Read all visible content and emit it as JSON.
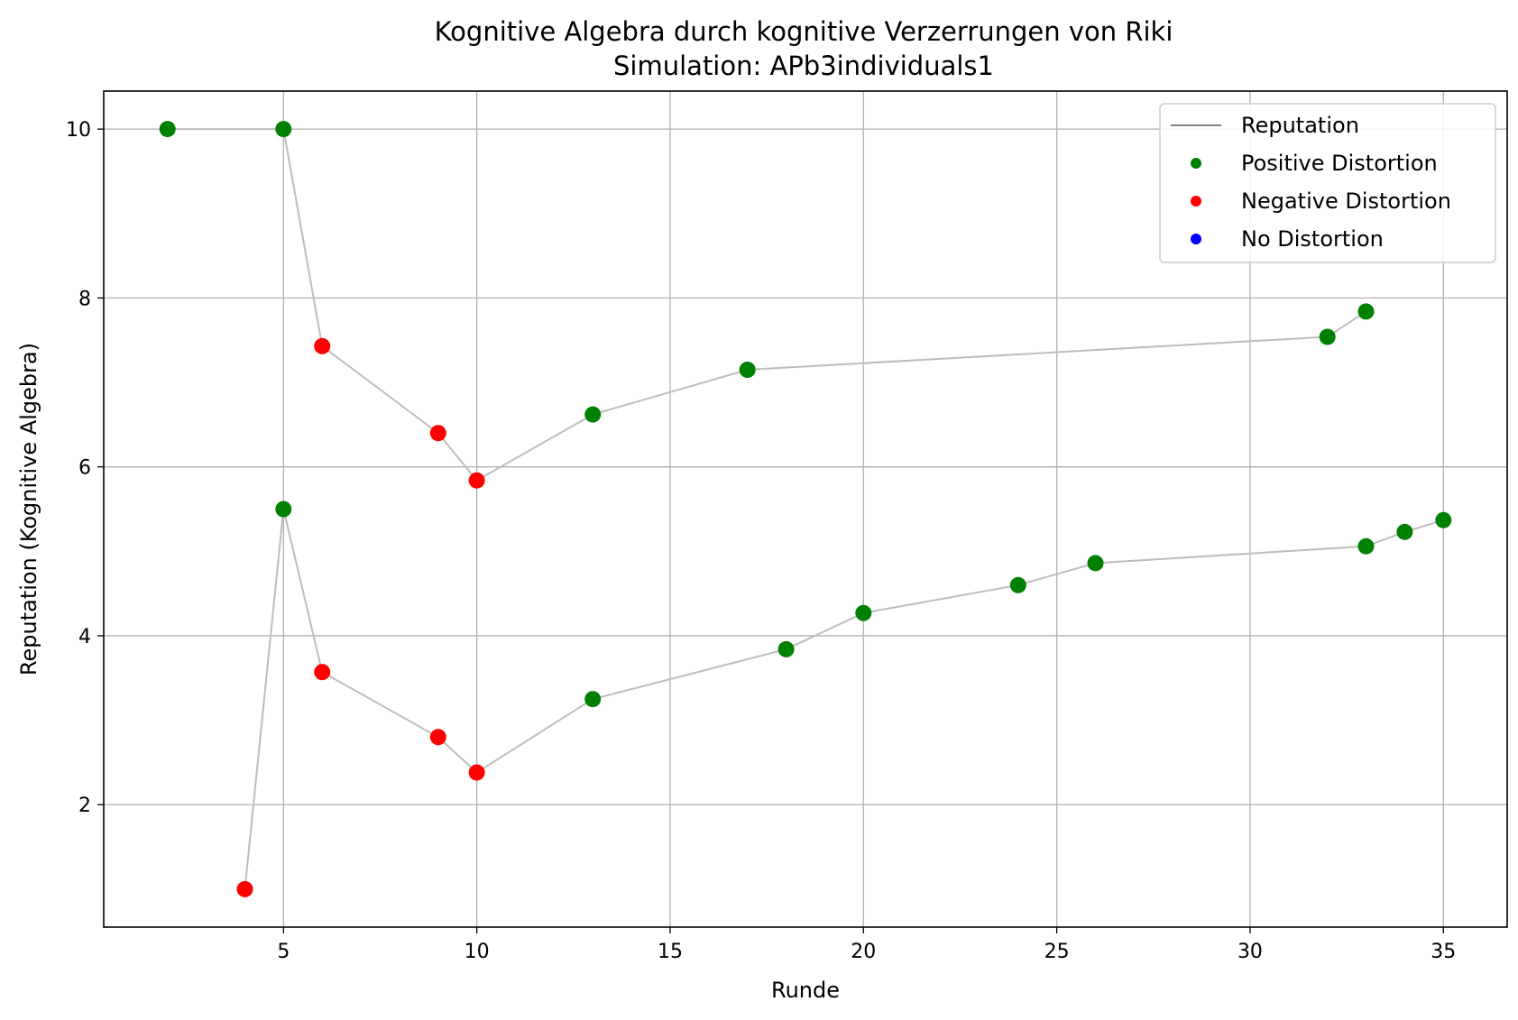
{
  "chart_data": {
    "type": "scatter",
    "title": "Kognitive Algebra durch kognitive Verzerrungen von Riki",
    "subtitle": "Simulation: APb3individuals1",
    "xlabel": "Runde",
    "ylabel": "Reputation (Kognitive Algebra)",
    "xlim": [
      0.35,
      36.65
    ],
    "ylim": [
      0.55,
      10.45
    ],
    "xticks": [
      5,
      10,
      15,
      20,
      25,
      30,
      35
    ],
    "yticks": [
      2,
      4,
      6,
      8,
      10
    ],
    "grid": true,
    "legend_position": "top-right",
    "colors": {
      "line": "#bdbdbd",
      "legend_line": "#808080",
      "positive": "#008000",
      "negative": "#ff0000",
      "none": "#0000ff"
    },
    "legend": [
      {
        "label": "Reputation",
        "kind": "line",
        "color_key": "legend_line"
      },
      {
        "label": "Positive Distortion",
        "kind": "marker",
        "color_key": "positive"
      },
      {
        "label": "Negative Distortion",
        "kind": "marker",
        "color_key": "negative"
      },
      {
        "label": "No Distortion",
        "kind": "marker",
        "color_key": "none"
      }
    ],
    "series": [
      {
        "points": [
          {
            "x": 2,
            "y": 10.0,
            "d": "positive"
          },
          {
            "x": 5,
            "y": 10.0,
            "d": "positive"
          },
          {
            "x": 6,
            "y": 7.43,
            "d": "negative"
          },
          {
            "x": 9,
            "y": 6.4,
            "d": "negative"
          },
          {
            "x": 10,
            "y": 5.84,
            "d": "negative"
          },
          {
            "x": 13,
            "y": 6.62,
            "d": "positive"
          },
          {
            "x": 17,
            "y": 7.15,
            "d": "positive"
          },
          {
            "x": 32,
            "y": 7.54,
            "d": "positive"
          },
          {
            "x": 33,
            "y": 7.84,
            "d": "positive"
          }
        ]
      },
      {
        "points": [
          {
            "x": 4,
            "y": 1.0,
            "d": "negative"
          },
          {
            "x": 5,
            "y": 5.5,
            "d": "positive"
          },
          {
            "x": 6,
            "y": 3.57,
            "d": "negative"
          },
          {
            "x": 9,
            "y": 2.8,
            "d": "negative"
          },
          {
            "x": 10,
            "y": 2.38,
            "d": "negative"
          },
          {
            "x": 13,
            "y": 3.25,
            "d": "positive"
          },
          {
            "x": 18,
            "y": 3.84,
            "d": "positive"
          },
          {
            "x": 20,
            "y": 4.27,
            "d": "positive"
          },
          {
            "x": 24,
            "y": 4.6,
            "d": "positive"
          },
          {
            "x": 26,
            "y": 4.86,
            "d": "positive"
          },
          {
            "x": 33,
            "y": 5.06,
            "d": "positive"
          },
          {
            "x": 34,
            "y": 5.23,
            "d": "positive"
          },
          {
            "x": 35,
            "y": 5.37,
            "d": "positive"
          }
        ]
      }
    ]
  }
}
